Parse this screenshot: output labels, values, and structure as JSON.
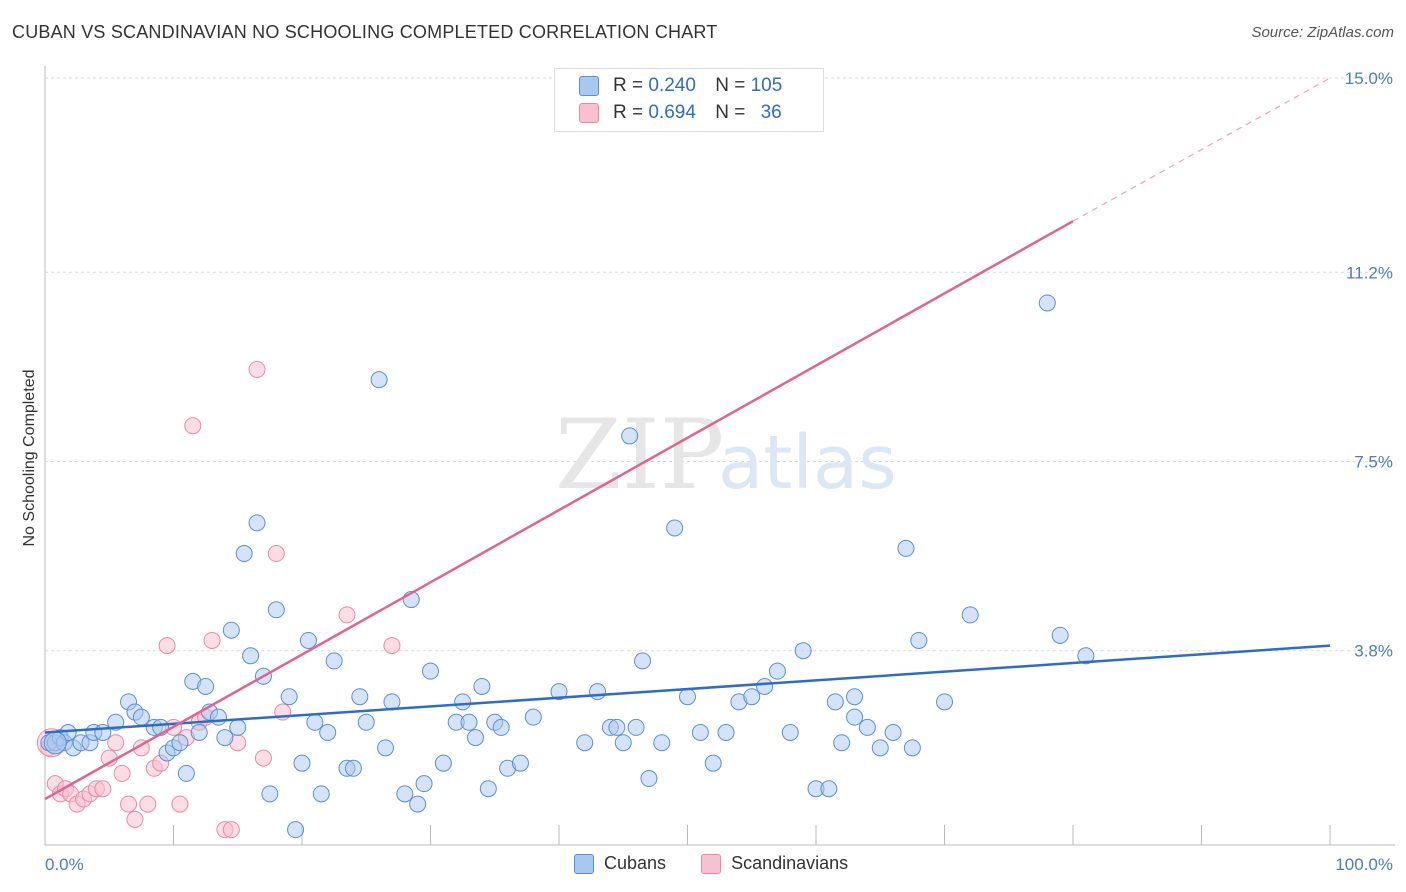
{
  "header": {
    "title": "CUBAN VS SCANDINAVIAN NO SCHOOLING COMPLETED CORRELATION CHART",
    "source": "Source: ZipAtlas.com"
  },
  "legend_top": {
    "rows": [
      {
        "r_label": "R =",
        "r_value": "0.240",
        "n_label": "N =",
        "n_value": "105"
      },
      {
        "r_label": "R =",
        "r_value": "0.694",
        "n_label": "N =",
        "n_value": "36"
      }
    ]
  },
  "legend_bottom": {
    "items": [
      {
        "label": "Cubans"
      },
      {
        "label": "Scandinavians"
      }
    ]
  },
  "colors": {
    "cubans_fill": "#a9c8f0",
    "cubans_stroke": "#5b8fd6",
    "cubans_line": "#2e6cc7",
    "scand_fill": "#f8c1d0",
    "scand_stroke": "#e88aa6",
    "scand_line": "#e0648e",
    "grid": "#d9d9d9",
    "tick_text": "#4a7bc8"
  },
  "chart_data": {
    "type": "scatter",
    "title": "CUBAN VS SCANDINAVIAN NO SCHOOLING COMPLETED CORRELATION CHART",
    "xlabel": "",
    "ylabel": "No Schooling Completed",
    "xlim": [
      0,
      100
    ],
    "ylim": [
      0,
      15
    ],
    "x_tick_labels": [
      "0.0%",
      "100.0%"
    ],
    "y_ticks": [
      3.8,
      7.5,
      11.2,
      15.0
    ],
    "y_tick_labels": [
      "3.8%",
      "7.5%",
      "11.2%",
      "15.0%"
    ],
    "watermark": {
      "zip": "ZIP",
      "atlas": "atlas"
    },
    "series": [
      {
        "name": "Cubans",
        "r": 0.24,
        "n": 105,
        "trend": {
          "x0": 0,
          "y0": 2.2,
          "x1": 100,
          "y1": 3.9
        },
        "points": [
          [
            0.3,
            2.0
          ],
          [
            0.8,
            2.0
          ],
          [
            1.2,
            2.1
          ],
          [
            1.5,
            2.0
          ],
          [
            1.8,
            2.2
          ],
          [
            2.2,
            1.9
          ],
          [
            2.8,
            2.0
          ],
          [
            3.5,
            2.0
          ],
          [
            3.8,
            2.2
          ],
          [
            4.5,
            2.2
          ],
          [
            5.5,
            2.4
          ],
          [
            6.5,
            2.8
          ],
          [
            7.0,
            2.6
          ],
          [
            7.5,
            2.5
          ],
          [
            8.5,
            2.3
          ],
          [
            9.0,
            2.3
          ],
          [
            9.5,
            1.8
          ],
          [
            10.0,
            1.9
          ],
          [
            10.5,
            2.0
          ],
          [
            11.0,
            1.4
          ],
          [
            11.5,
            3.2
          ],
          [
            12.0,
            2.2
          ],
          [
            12.5,
            3.1
          ],
          [
            12.8,
            2.6
          ],
          [
            13.5,
            2.5
          ],
          [
            14.0,
            2.1
          ],
          [
            14.5,
            4.2
          ],
          [
            15.0,
            2.3
          ],
          [
            15.5,
            5.7
          ],
          [
            16.0,
            3.7
          ],
          [
            16.5,
            6.3
          ],
          [
            17.0,
            3.3
          ],
          [
            17.5,
            1.0
          ],
          [
            18.0,
            4.6
          ],
          [
            19.0,
            2.9
          ],
          [
            19.5,
            0.3
          ],
          [
            20.0,
            1.6
          ],
          [
            20.5,
            4.0
          ],
          [
            21.0,
            2.4
          ],
          [
            21.5,
            1.0
          ],
          [
            22.0,
            2.2
          ],
          [
            22.5,
            3.6
          ],
          [
            23.5,
            1.5
          ],
          [
            24.0,
            1.5
          ],
          [
            24.5,
            2.9
          ],
          [
            25.0,
            2.4
          ],
          [
            26.0,
            9.1
          ],
          [
            26.5,
            1.9
          ],
          [
            27.0,
            2.8
          ],
          [
            28.0,
            1.0
          ],
          [
            28.5,
            4.8
          ],
          [
            29.0,
            0.8
          ],
          [
            29.5,
            1.2
          ],
          [
            30.0,
            3.4
          ],
          [
            31.0,
            1.6
          ],
          [
            32.0,
            2.4
          ],
          [
            32.5,
            2.8
          ],
          [
            33.0,
            2.4
          ],
          [
            33.5,
            2.1
          ],
          [
            34.0,
            3.1
          ],
          [
            34.5,
            1.1
          ],
          [
            35.0,
            2.4
          ],
          [
            35.5,
            2.3
          ],
          [
            36.0,
            1.5
          ],
          [
            37.0,
            1.6
          ],
          [
            40.0,
            3.0
          ],
          [
            42.0,
            2.0
          ],
          [
            43.0,
            3.0
          ],
          [
            44.0,
            2.3
          ],
          [
            44.5,
            2.3
          ],
          [
            45.0,
            2.0
          ],
          [
            45.5,
            8.0
          ],
          [
            46.0,
            2.3
          ],
          [
            46.5,
            3.6
          ],
          [
            47.0,
            1.3
          ],
          [
            49.0,
            6.2
          ],
          [
            50.0,
            2.9
          ],
          [
            51.0,
            2.2
          ],
          [
            52.0,
            1.6
          ],
          [
            53.0,
            2.2
          ],
          [
            54.0,
            2.8
          ],
          [
            55.0,
            2.9
          ],
          [
            56.0,
            3.1
          ],
          [
            57.0,
            3.4
          ],
          [
            58.0,
            2.2
          ],
          [
            59.0,
            3.8
          ],
          [
            60.0,
            1.1
          ],
          [
            61.0,
            1.1
          ],
          [
            61.5,
            2.8
          ],
          [
            62.0,
            2.0
          ],
          [
            63.0,
            2.9
          ],
          [
            64.0,
            2.3
          ],
          [
            65.0,
            1.9
          ],
          [
            66.0,
            2.2
          ],
          [
            67.0,
            5.8
          ],
          [
            67.5,
            1.9
          ],
          [
            68.0,
            4.0
          ],
          [
            70.0,
            2.8
          ],
          [
            72.0,
            4.5
          ],
          [
            78.0,
            10.6
          ],
          [
            79.0,
            4.1
          ],
          [
            81.0,
            3.7
          ],
          [
            63.0,
            2.5
          ],
          [
            38.0,
            2.5
          ],
          [
            48.0,
            2.0
          ]
        ]
      },
      {
        "name": "Scandinavians",
        "r": 0.694,
        "n": 36,
        "trend": {
          "x0": 0,
          "y0": 0.9,
          "x1": 80,
          "y1": 12.2,
          "dash_to_x": 100,
          "dash_to_y": 15.0
        },
        "points": [
          [
            0.3,
            1.9
          ],
          [
            0.8,
            1.2
          ],
          [
            1.2,
            1.0
          ],
          [
            1.6,
            1.1
          ],
          [
            2.0,
            1.0
          ],
          [
            2.5,
            0.8
          ],
          [
            3.0,
            0.9
          ],
          [
            3.5,
            1.0
          ],
          [
            4.0,
            1.1
          ],
          [
            4.5,
            1.1
          ],
          [
            5.0,
            1.7
          ],
          [
            5.5,
            2.0
          ],
          [
            6.0,
            1.4
          ],
          [
            6.5,
            0.8
          ],
          [
            7.0,
            0.5
          ],
          [
            7.5,
            1.9
          ],
          [
            8.0,
            0.8
          ],
          [
            8.5,
            1.5
          ],
          [
            9.0,
            1.6
          ],
          [
            9.5,
            3.9
          ],
          [
            10.0,
            2.3
          ],
          [
            10.5,
            0.8
          ],
          [
            11.0,
            2.1
          ],
          [
            11.5,
            8.2
          ],
          [
            12.0,
            2.4
          ],
          [
            12.5,
            2.5
          ],
          [
            13.0,
            4.0
          ],
          [
            14.0,
            0.3
          ],
          [
            14.5,
            0.3
          ],
          [
            15.0,
            2.0
          ],
          [
            16.5,
            9.3
          ],
          [
            17.0,
            1.7
          ],
          [
            18.0,
            5.7
          ],
          [
            18.5,
            2.6
          ],
          [
            23.5,
            4.5
          ],
          [
            27.0,
            3.9
          ]
        ]
      }
    ]
  }
}
